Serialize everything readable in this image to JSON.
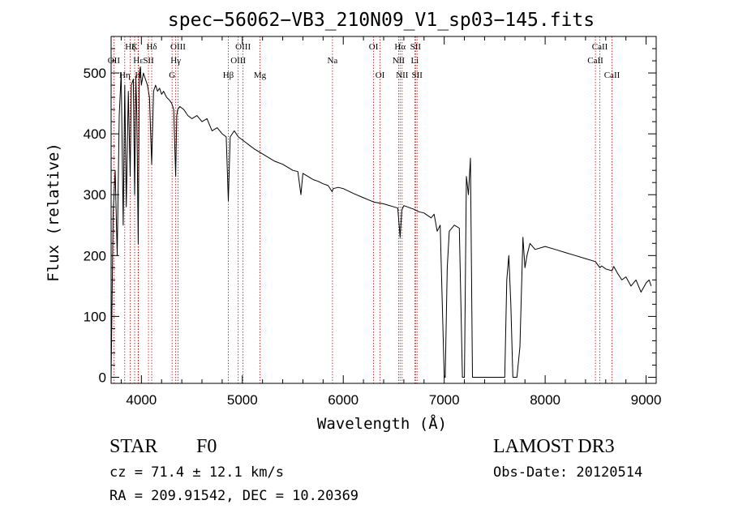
{
  "chart_data": {
    "type": "line",
    "title": "spec−56062−VB3_210N09_V1_sp03−145.fits",
    "xlabel": "Wavelength (Å)",
    "ylabel": "Flux (relative)",
    "xlim": [
      3700,
      9100
    ],
    "ylim": [
      -10,
      560
    ],
    "xticks": [
      4000,
      5000,
      6000,
      7000,
      8000,
      9000
    ],
    "yticks": [
      0,
      100,
      200,
      300,
      400,
      500
    ],
    "series": [
      {
        "name": "flux",
        "x": [
          3700,
          3720,
          3740,
          3760,
          3780,
          3800,
          3820,
          3835,
          3850,
          3870,
          3889,
          3900,
          3920,
          3933,
          3945,
          3955,
          3968,
          3980,
          3990,
          4000,
          4020,
          4040,
          4060,
          4080,
          4102,
          4120,
          4140,
          4160,
          4180,
          4200,
          4220,
          4250,
          4280,
          4300,
          4320,
          4340,
          4350,
          4360,
          4380,
          4420,
          4460,
          4500,
          4550,
          4600,
          4650,
          4700,
          4750,
          4800,
          4840,
          4861,
          4880,
          4920,
          4960,
          5000,
          5040,
          5080,
          5120,
          5170,
          5220,
          5270,
          5320,
          5400,
          5450,
          5500,
          5550,
          5580,
          5600,
          5650,
          5700,
          5750,
          5800,
          5850,
          5890,
          5900,
          5950,
          6000,
          6100,
          6200,
          6300,
          6400,
          6500,
          6540,
          6563,
          6580,
          6600,
          6700,
          6750,
          6800,
          6870,
          6900,
          6930,
          6960,
          7000,
          7010,
          7030,
          7050,
          7100,
          7150,
          7180,
          7200,
          7220,
          7240,
          7260,
          7280,
          7300,
          7320,
          7360,
          7400,
          7450,
          7500,
          7550,
          7580,
          7600,
          7620,
          7640,
          7660,
          7680,
          7700,
          7720,
          7750,
          7780,
          7800,
          7820,
          7850,
          7900,
          8000,
          8100,
          8200,
          8300,
          8400,
          8498,
          8520,
          8542,
          8560,
          8600,
          8662,
          8680,
          8720,
          8760,
          8800,
          8850,
          8900,
          8950,
          9000,
          9030,
          9050
        ],
        "y": [
          0,
          270,
          340,
          200,
          430,
          500,
          250,
          480,
          280,
          470,
          330,
          480,
          490,
          300,
          495,
          430,
          220,
          500,
          510,
          480,
          500,
          490,
          480,
          460,
          350,
          470,
          480,
          470,
          475,
          465,
          470,
          460,
          455,
          450,
          440,
          330,
          430,
          440,
          445,
          440,
          430,
          425,
          430,
          420,
          425,
          405,
          410,
          400,
          395,
          290,
          395,
          405,
          395,
          390,
          385,
          380,
          375,
          370,
          365,
          360,
          355,
          350,
          345,
          340,
          338,
          300,
          335,
          330,
          325,
          322,
          318,
          315,
          305,
          310,
          312,
          310,
          302,
          295,
          288,
          285,
          280,
          278,
          230,
          275,
          282,
          276,
          272,
          270,
          262,
          268,
          240,
          250,
          0,
          0,
          180,
          240,
          250,
          245,
          0,
          0,
          330,
          300,
          360,
          0,
          0,
          0,
          0,
          0,
          0,
          0,
          0,
          0,
          0,
          160,
          200,
          120,
          0,
          0,
          0,
          50,
          230,
          180,
          200,
          220,
          210,
          215,
          210,
          205,
          200,
          195,
          190,
          185,
          180,
          183,
          178,
          175,
          182,
          170,
          160,
          165,
          150,
          160,
          140,
          155,
          160,
          150
        ]
      }
    ],
    "lines": [
      {
        "label": "Hζ",
        "wave": 3889,
        "pos": "top"
      },
      {
        "label": "OII",
        "wave": 3727,
        "pos": "upper"
      },
      {
        "label": "Hη",
        "wave": 3835,
        "pos": "lower"
      },
      {
        "label": "Hε",
        "wave": 3970,
        "pos": "upper"
      },
      {
        "label": "K",
        "wave": 3933,
        "pos": "top"
      },
      {
        "label": "H",
        "wave": 3968,
        "pos": "lower"
      },
      {
        "label": "Hδ",
        "wave": 4102,
        "pos": "top"
      },
      {
        "label": "SII",
        "wave": 4070,
        "pos": "upper"
      },
      {
        "label": "OIII",
        "wave": 4363,
        "pos": "top"
      },
      {
        "label": "Hγ",
        "wave": 4340,
        "pos": "upper"
      },
      {
        "label": "G",
        "wave": 4304,
        "pos": "lower"
      },
      {
        "label": "Hβ",
        "wave": 4861,
        "pos": "lower"
      },
      {
        "label": "OIII",
        "wave": 5007,
        "pos": "top"
      },
      {
        "label": "OIII",
        "wave": 4959,
        "pos": "upper"
      },
      {
        "label": "Mg",
        "wave": 5175,
        "pos": "lower"
      },
      {
        "label": "Na",
        "wave": 5893,
        "pos": "upper"
      },
      {
        "label": "OI",
        "wave": 6300,
        "pos": "top"
      },
      {
        "label": "OI",
        "wave": 6364,
        "pos": "lower"
      },
      {
        "label": "Hα",
        "wave": 6563,
        "pos": "top"
      },
      {
        "label": "SII",
        "wave": 6716,
        "pos": "top"
      },
      {
        "label": "NII",
        "wave": 6548,
        "pos": "upper"
      },
      {
        "label": "Li",
        "wave": 6708,
        "pos": "upper"
      },
      {
        "label": "NII",
        "wave": 6583,
        "pos": "lower"
      },
      {
        "label": "SII",
        "wave": 6731,
        "pos": "lower"
      },
      {
        "label": "CaII",
        "wave": 8542,
        "pos": "top"
      },
      {
        "label": "CaII",
        "wave": 8498,
        "pos": "upper"
      },
      {
        "label": "CaII",
        "wave": 8662,
        "pos": "lower"
      }
    ]
  },
  "info": {
    "class_label": "STAR",
    "subclass": "F0",
    "survey": "LAMOST DR3",
    "cz": "cz = 71.4 ± 12.1 km/s",
    "obs_date": "Obs-Date: 20120514",
    "coords": "RA = 209.91542, DEC =  10.20369"
  },
  "colors": {
    "line_marker": "#cc0000",
    "spectrum": "#000000"
  }
}
